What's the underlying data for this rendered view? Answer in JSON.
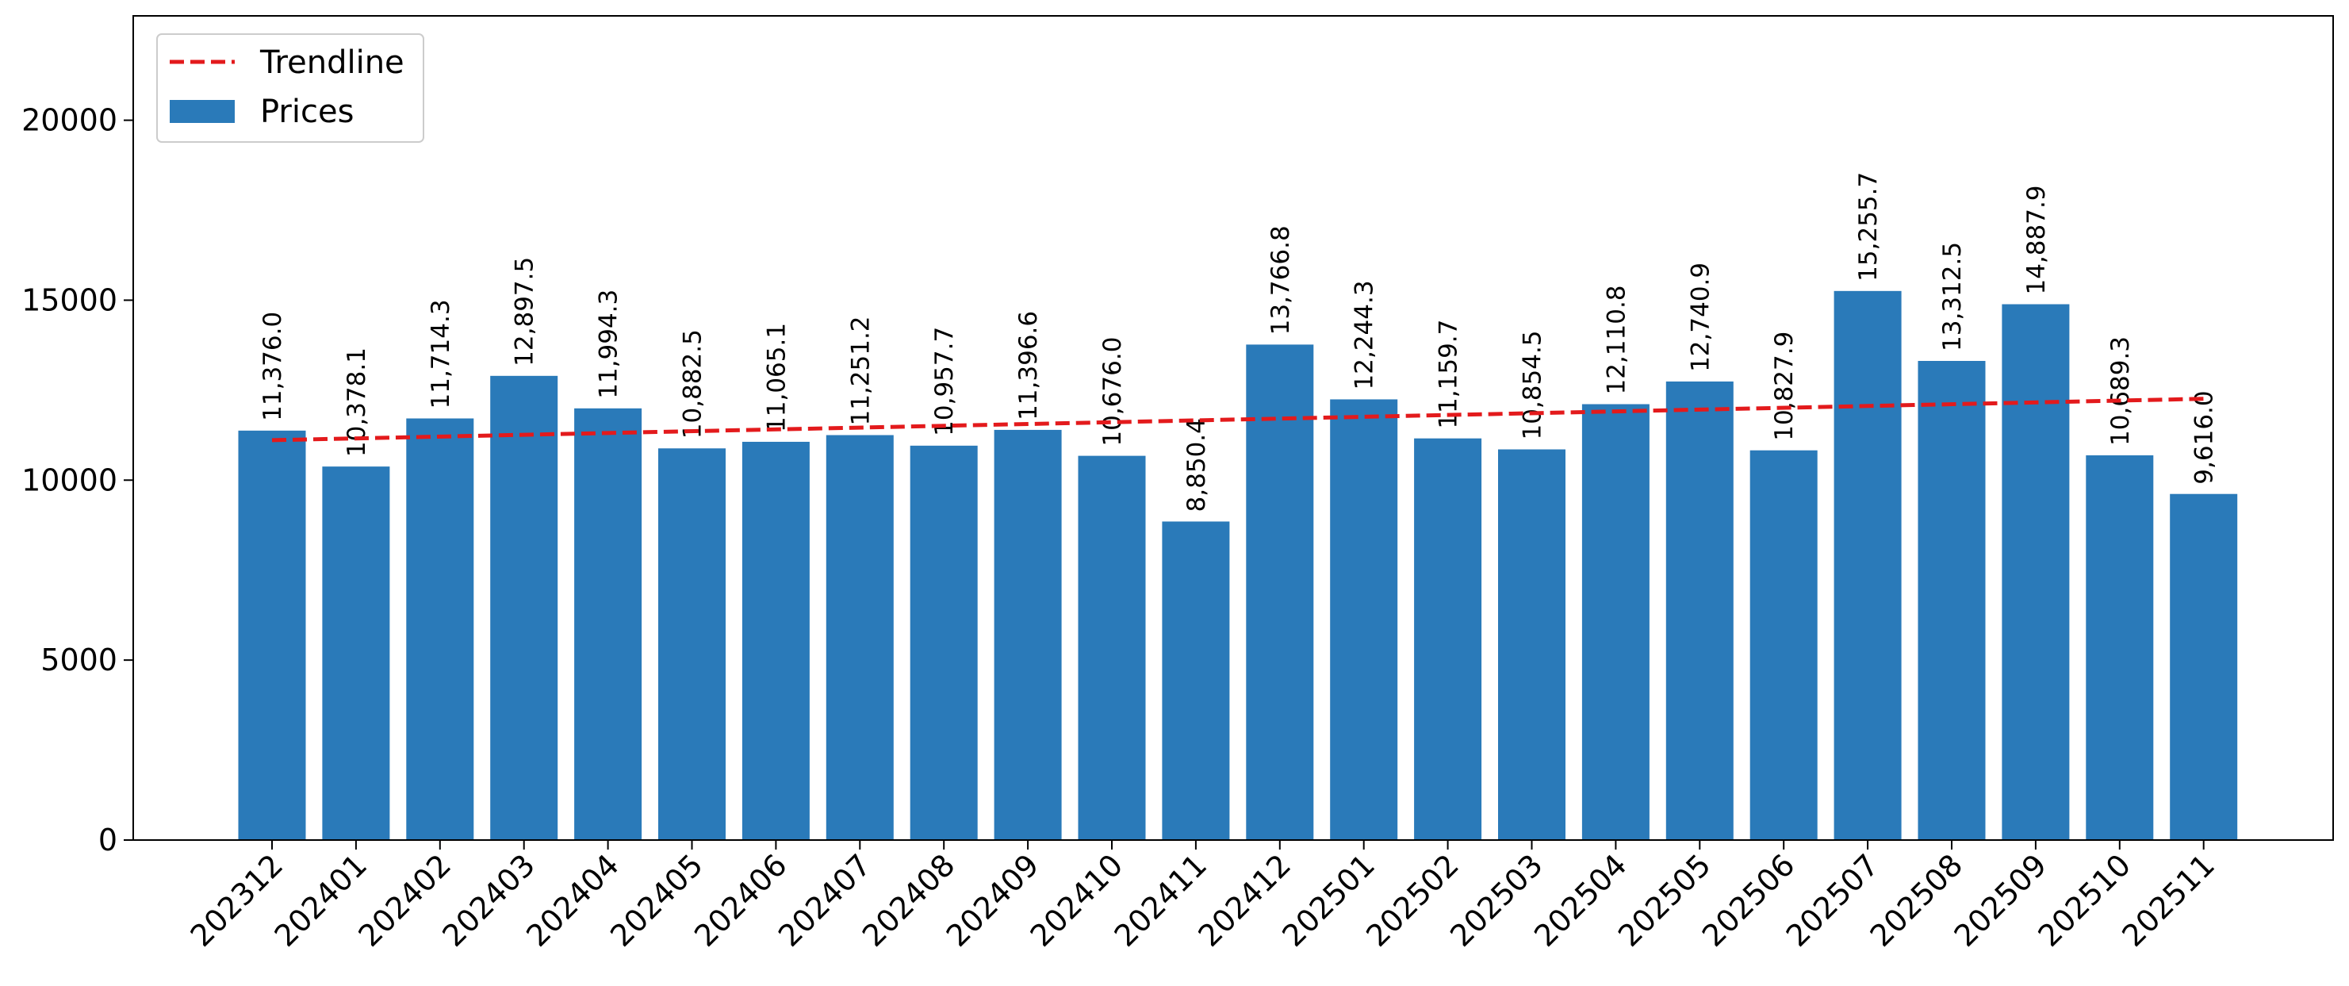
{
  "chart_data": {
    "type": "bar",
    "title": "",
    "xlabel": "",
    "ylabel": "",
    "categories": [
      "202312",
      "202401",
      "202402",
      "202403",
      "202404",
      "202405",
      "202406",
      "202407",
      "202408",
      "202409",
      "202410",
      "202411",
      "202412",
      "202501",
      "202502",
      "202503",
      "202504",
      "202505",
      "202506",
      "202507",
      "202508",
      "202509",
      "202510",
      "202511"
    ],
    "series": [
      {
        "name": "Prices",
        "values": [
          11376.0,
          10378.1,
          11714.3,
          12897.5,
          11994.3,
          10882.5,
          11065.1,
          11251.2,
          10957.7,
          11396.6,
          10676.0,
          8850.4,
          13766.8,
          12244.3,
          11159.7,
          10854.5,
          12110.8,
          12740.9,
          10827.9,
          15255.7,
          13312.5,
          14887.9,
          10689.3,
          9616.0
        ],
        "labels": [
          "11,376.0",
          "10,378.1",
          "11,714.3",
          "12,897.5",
          "11,994.3",
          "10,882.5",
          "11,065.1",
          "11,251.2",
          "10,957.7",
          "11,396.6",
          "10,676.0",
          "8,850.4",
          "13,766.8",
          "12,244.3",
          "11,159.7",
          "10,854.5",
          "12,110.8",
          "12,740.9",
          "10,827.9",
          "15,255.7",
          "13,312.5",
          "14,887.9",
          "10,689.3",
          "9,616.0"
        ],
        "color": "#2a7ab9"
      }
    ],
    "trendline": {
      "name": "Trendline",
      "start": 11110,
      "end": 12260,
      "color": "#e31a1c",
      "style": "dashed"
    },
    "ylim": [
      0,
      22900
    ],
    "yticks": [
      0,
      5000,
      10000,
      15000,
      20000
    ],
    "grid": false,
    "legend_position": "top-left",
    "legend": [
      {
        "label": "Trendline",
        "type": "line"
      },
      {
        "label": "Prices",
        "type": "patch"
      }
    ]
  }
}
